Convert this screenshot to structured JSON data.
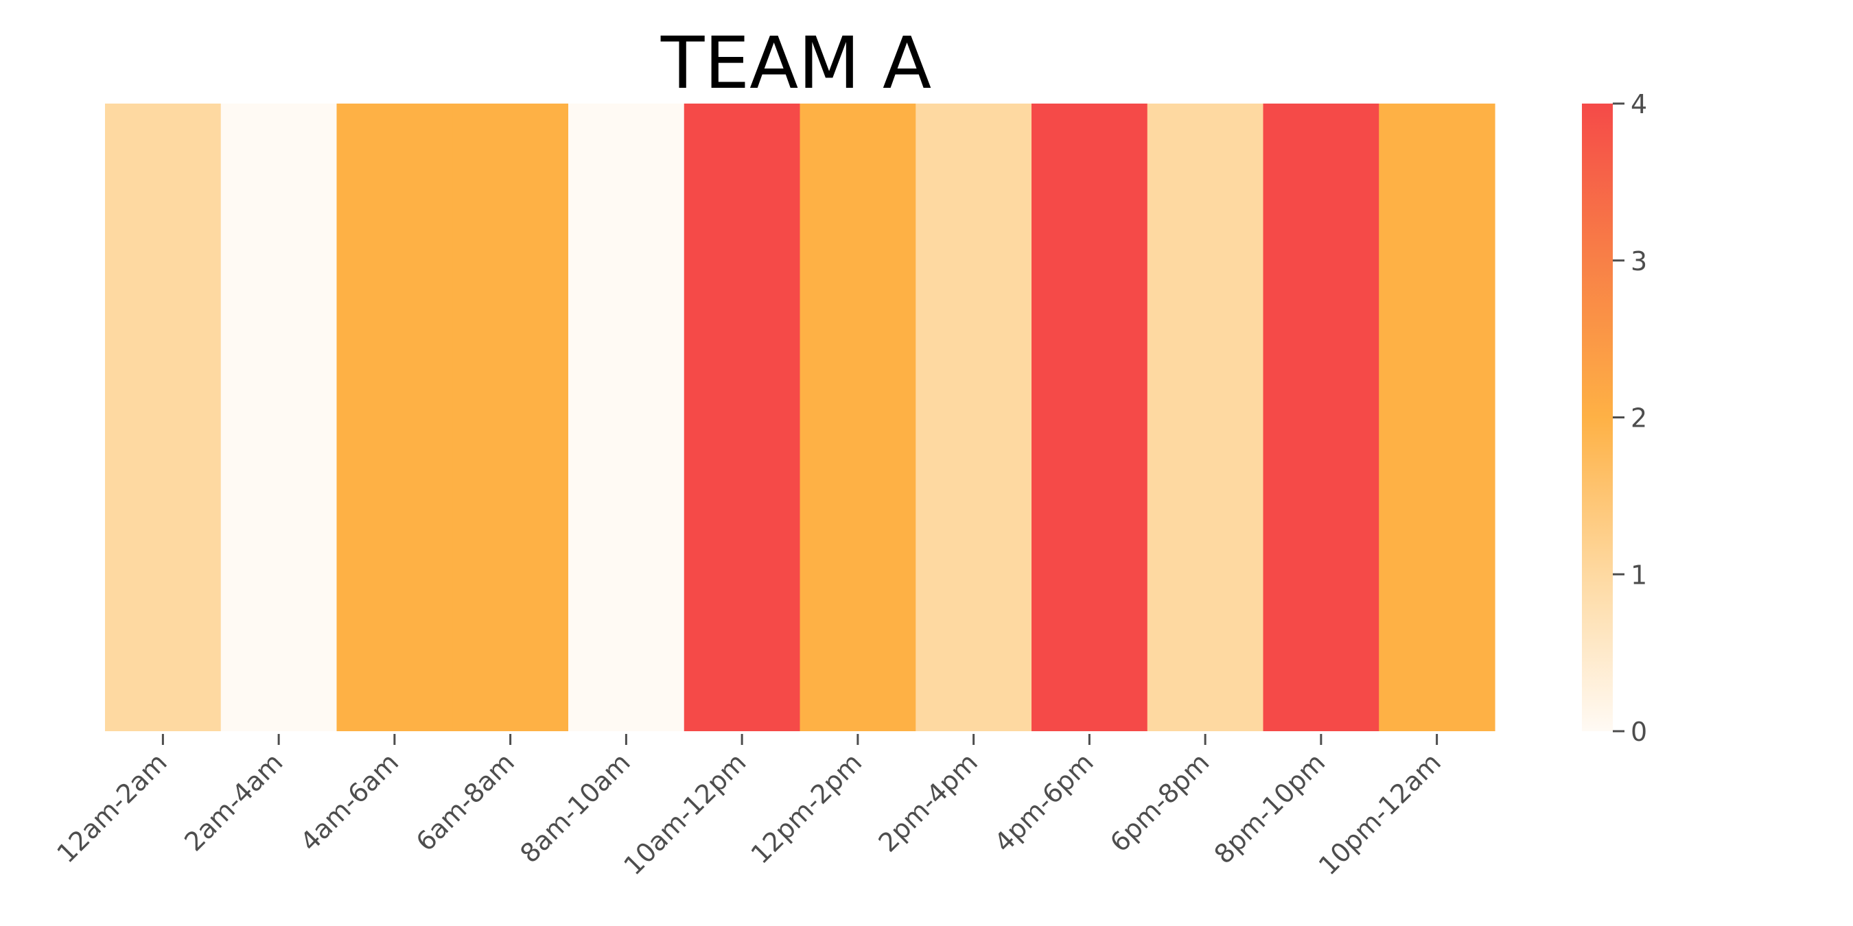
{
  "chart_data": {
    "type": "heatmap",
    "title": "TEAM A",
    "xlabel": "",
    "ylabel": "",
    "categories": [
      "12am-2am",
      "2am-4am",
      "4am-6am",
      "6am-8am",
      "8am-10am",
      "10am-12pm",
      "12pm-2pm",
      "2pm-4pm",
      "4pm-6pm",
      "6pm-8pm",
      "8pm-10pm",
      "10pm-12am"
    ],
    "values": [
      1,
      0,
      2,
      2,
      0,
      4,
      2,
      1,
      4,
      1,
      4,
      2
    ],
    "colorbar": {
      "min": 0,
      "max": 4,
      "ticks": [
        0,
        1,
        2,
        3,
        4
      ],
      "colors": [
        "#fffaf4",
        "#fed9a1",
        "#feb145",
        "#f88047",
        "#f54a48"
      ]
    },
    "grid": false,
    "legend": "colorbar-right"
  }
}
